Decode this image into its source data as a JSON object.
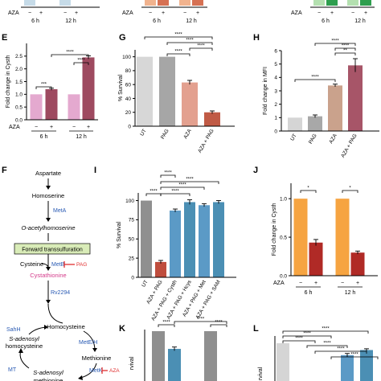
{
  "panel_letters": {
    "E": "E",
    "G": "G",
    "H": "H",
    "F": "F",
    "I": "I",
    "J": "J",
    "K": "K",
    "L": "L"
  },
  "top_strip": {
    "aza_label": "AZA",
    "minus": "−",
    "plus": "+",
    "time_labels": [
      "6 h",
      "12 h"
    ]
  },
  "colors": {
    "pink": "#e4a9cf",
    "maroon": "#9e4a60",
    "lightgray": "#d7d7d7",
    "midgray": "#a6a6a6",
    "salmon": "#e3a08f",
    "brick": "#c05a45",
    "palegray": "#d5d5d5",
    "gray": "#a8a8a8",
    "tan": "#caa28c",
    "rose": "#a75568",
    "darkgray": "#8f8f8f",
    "rust": "#bf4d3d",
    "steel": "#5b9ac6",
    "teal": "#4b8fb4",
    "orange": "#f6a441",
    "darkred": "#b02a26",
    "blue": "#2a5bb4",
    "red": "#e03030",
    "pink_text": "#d43a8a",
    "green": "#2e9e4e",
    "peach": "#f1b38e",
    "coral": "#d67153",
    "light_green": "#b4e0b0"
  },
  "pathway": {
    "aspartate": "Aspartate",
    "homoserine": "Homoserine",
    "meta": "MetA",
    "oacetyl": "O-acetylhomoserine",
    "forward": "Forward transsulfuration",
    "cysteine": "Cysteine",
    "metb": "MetB",
    "pag": "PAG",
    "cystathionine": "Cystathionine",
    "rv2294": "Rv2294",
    "homocysteine": "Homocysteine",
    "sahh": "SahH",
    "meteh": "MetE/H",
    "s_adenosyl_homocysteine_1": "S-adenosyl",
    "s_adenosyl_homocysteine_2": "homocysteine",
    "methionine": "Methionine",
    "metk": "MetK",
    "aza": "AZA",
    "mt": "MT",
    "sam_1": "S-adenosyl",
    "sam_2": "methionine"
  },
  "chart_data": [
    {
      "panel": "E",
      "type": "bar",
      "ylabel": "Fold change in Cysth",
      "ylim": [
        0,
        3
      ],
      "yticks": [
        "0.0",
        "0.5",
        "1.0",
        "1.5",
        "2.0",
        "2.5"
      ],
      "x_group_row_label": "AZA",
      "x_signs": [
        "−",
        "+",
        "−",
        "+"
      ],
      "groups": [
        "6 h",
        "12 h"
      ],
      "values": [
        1.0,
        1.2,
        1.0,
        2.45
      ],
      "errors": [
        0,
        0.04,
        0,
        0.06
      ],
      "significance": [
        "***",
        "****",
        "****"
      ]
    },
    {
      "panel": "G",
      "type": "bar",
      "ylabel": "% Survival",
      "ylim": [
        0,
        110
      ],
      "yticks": [
        "0",
        "20",
        "40",
        "60",
        "80",
        "100"
      ],
      "categories": [
        "UT",
        "PAG",
        "AZA",
        "AZA + PAG"
      ],
      "values": [
        100,
        100,
        63,
        20
      ],
      "errors": [
        0,
        0,
        3,
        2
      ],
      "significance": [
        "****",
        "****",
        "****",
        "****"
      ]
    },
    {
      "panel": "H",
      "type": "bar",
      "ylabel": "Fold change in MFI",
      "ylim": [
        0,
        6
      ],
      "yticks": [
        "0",
        "1",
        "2",
        "3",
        "4",
        "5",
        "6"
      ],
      "categories": [
        "UT",
        "PAG",
        "AZA",
        "AZA + PAG"
      ],
      "values": [
        1.0,
        1.1,
        3.4,
        4.9
      ],
      "errors": [
        0,
        0.1,
        0.1,
        0.5
      ],
      "significance": [
        "****",
        "****",
        "****",
        "**"
      ]
    },
    {
      "panel": "I",
      "type": "bar",
      "ylabel": "% Survival",
      "ylim": [
        0,
        110
      ],
      "yticks": [
        "0",
        "25",
        "50",
        "75",
        "100"
      ],
      "categories": [
        "UT",
        "AZA + PAG",
        "AZA + PAG + Cysth",
        "AZA + PAG + Hcys",
        "AZA + PAG + Met",
        "AZA + PAG + SAM"
      ],
      "values": [
        100,
        20,
        87,
        98,
        94,
        98
      ],
      "errors": [
        0,
        2,
        2,
        3,
        2,
        2
      ],
      "significance": [
        "****",
        "****",
        "****",
        "****",
        "****"
      ]
    },
    {
      "panel": "J",
      "type": "bar",
      "ylabel": "Fold change in Cysth",
      "ylim": [
        0,
        1.2
      ],
      "yticks": [
        "0.0",
        "0.5",
        "1.0"
      ],
      "x_group_row_label": "AZA",
      "x_signs": [
        "−",
        "+",
        "−",
        "+"
      ],
      "groups": [
        "6 h",
        "12 h"
      ],
      "values": [
        1.0,
        0.43,
        1.0,
        0.3
      ],
      "errors": [
        0,
        0.04,
        0,
        0.02
      ],
      "significance": [
        "*",
        "*"
      ]
    },
    {
      "panel": "K",
      "type": "bar",
      "ylabel": "rvival",
      "values": [
        100,
        62,
        100
      ],
      "errors": [
        0,
        4,
        0
      ],
      "significance": [
        "****",
        "****",
        "****"
      ]
    },
    {
      "panel": "L",
      "type": "bar",
      "ylabel": "rvival",
      "values": [
        100,
        72,
        84
      ],
      "errors": [
        0,
        4,
        3
      ],
      "significance": [
        "****",
        "****",
        "****",
        "****",
        "****",
        "****"
      ]
    }
  ]
}
